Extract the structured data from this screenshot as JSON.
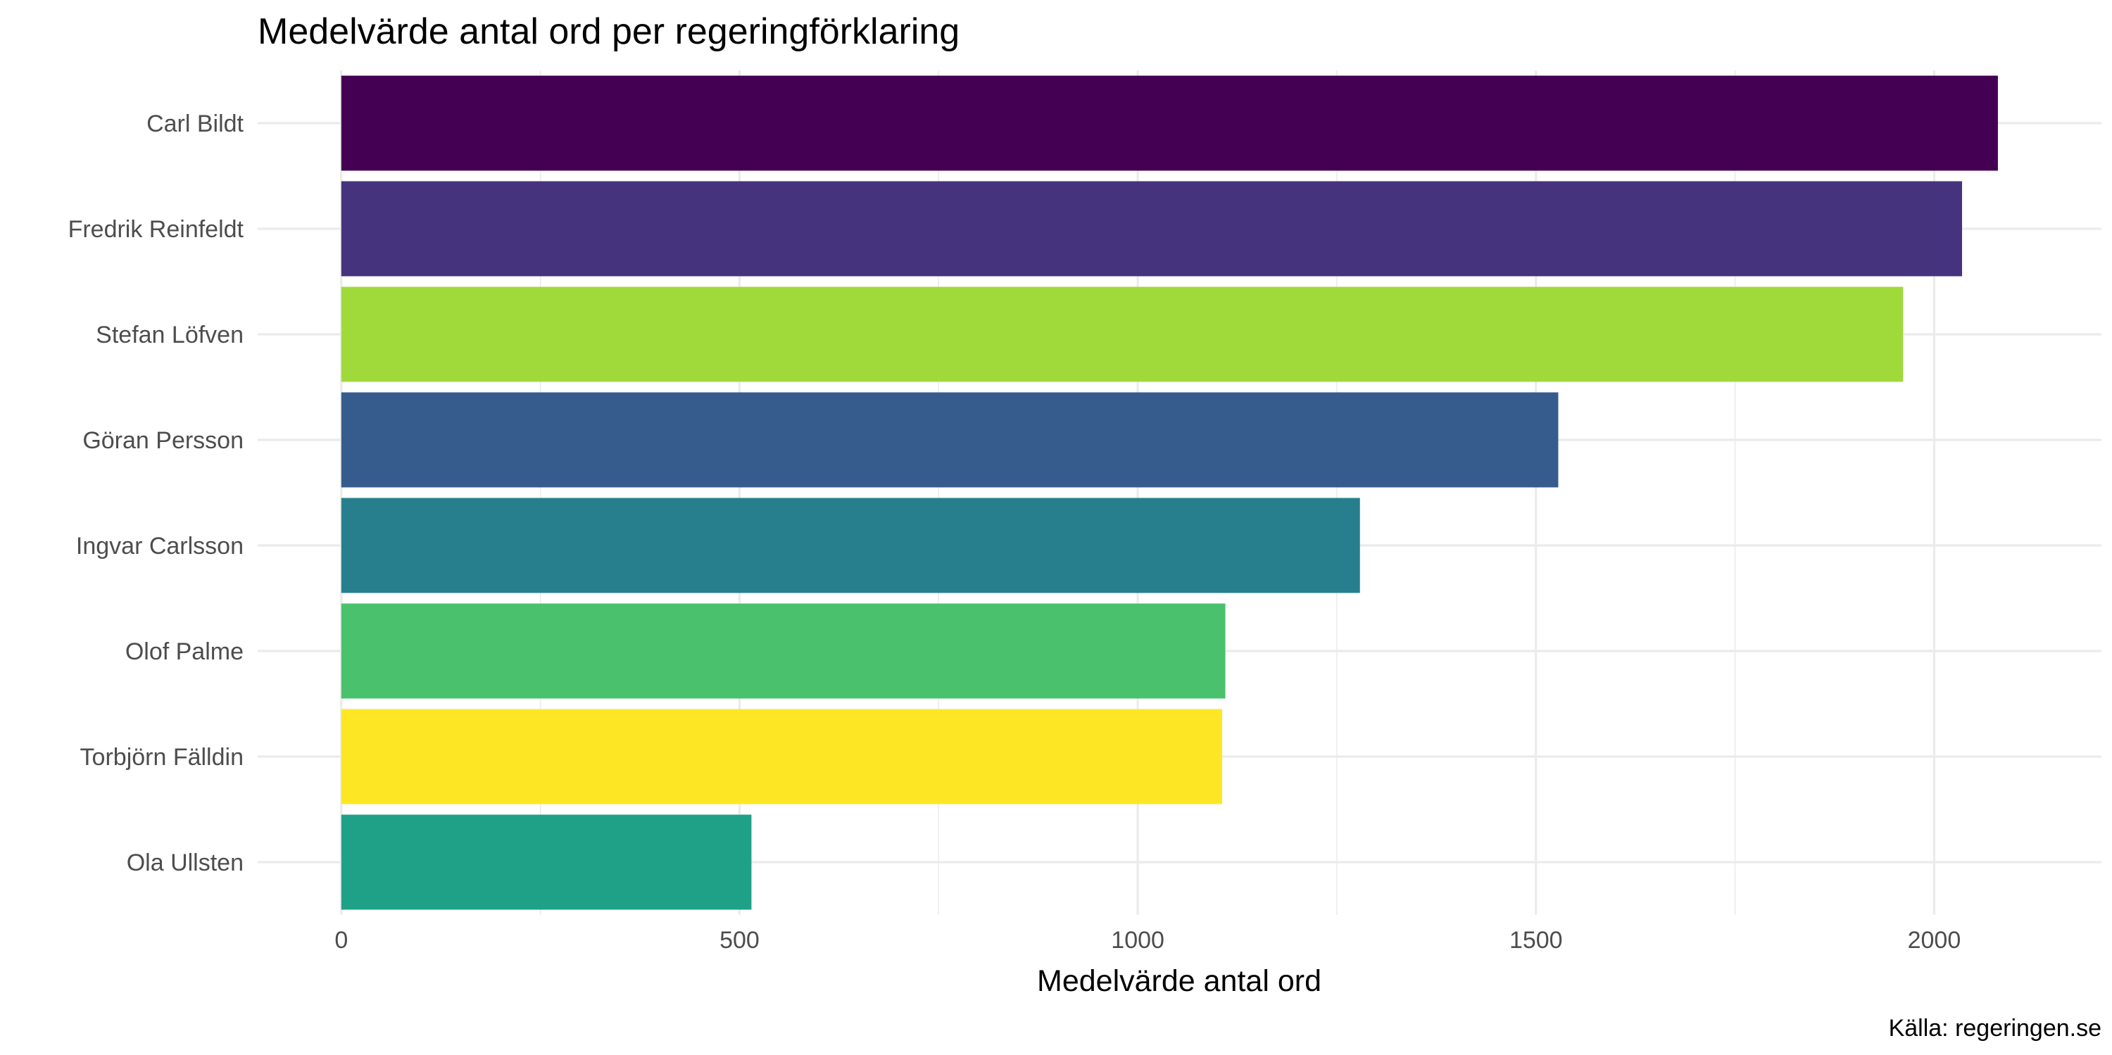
{
  "chart_data": {
    "type": "bar",
    "orientation": "horizontal",
    "title": "Medelvärde antal ord per regeringförklaring",
    "xlabel": "Medelvärde antal ord",
    "ylabel": "",
    "caption": "Källa: regeringen.se",
    "categories": [
      "Carl Bildt",
      "Fredrik Reinfeldt",
      "Stefan Löfven",
      "Göran Persson",
      "Ingvar Carlsson",
      "Olof Palme",
      "Torbjörn Fälldin",
      "Ola Ullsten"
    ],
    "values": [
      2080,
      2035,
      1961,
      1528,
      1279,
      1110,
      1106,
      515
    ],
    "colors": [
      "#440154",
      "#46337E",
      "#9FDA3A",
      "#365C8D",
      "#277F8E",
      "#4AC16D",
      "#FDE725",
      "#1FA187"
    ],
    "xlim": [
      -105,
      2210
    ],
    "x_ticks": [
      "0",
      "500",
      "1000",
      "1500",
      "2000"
    ],
    "grid": true,
    "legend": "none"
  }
}
